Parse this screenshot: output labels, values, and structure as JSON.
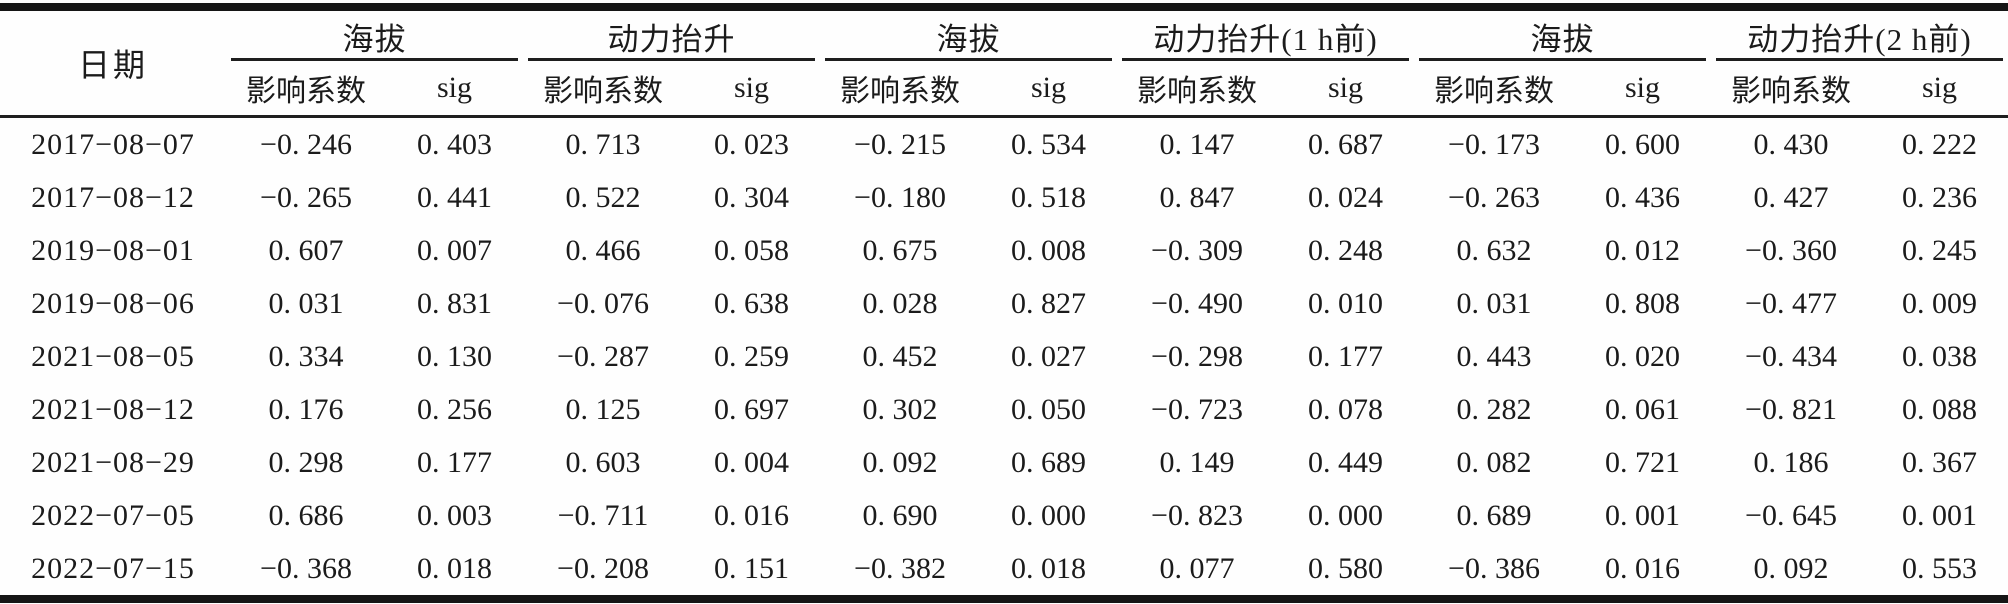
{
  "table": {
    "date_header": "日期",
    "groups": [
      {
        "label": "海拔",
        "sub": [
          "影响系数",
          "sig"
        ]
      },
      {
        "label": "动力抬升",
        "sub": [
          "影响系数",
          "sig"
        ]
      },
      {
        "label": "海拔",
        "sub": [
          "影响系数",
          "sig"
        ]
      },
      {
        "label": "动力抬升(1 h前)",
        "sub": [
          "影响系数",
          "sig"
        ]
      },
      {
        "label": "海拔",
        "sub": [
          "影响系数",
          "sig"
        ]
      },
      {
        "label": "动力抬升(2 h前)",
        "sub": [
          "影响系数",
          "sig"
        ]
      }
    ],
    "rows": [
      {
        "date": "2017−08−07",
        "values": [
          "−0. 246",
          "0. 403",
          "0. 713",
          "0. 023",
          "−0. 215",
          "0. 534",
          "0. 147",
          "0. 687",
          "−0. 173",
          "0. 600",
          "0. 430",
          "0. 222"
        ]
      },
      {
        "date": "2017−08−12",
        "values": [
          "−0. 265",
          "0. 441",
          "0. 522",
          "0. 304",
          "−0. 180",
          "0. 518",
          "0. 847",
          "0. 024",
          "−0. 263",
          "0. 436",
          "0. 427",
          "0. 236"
        ]
      },
      {
        "date": "2019−08−01",
        "values": [
          "0. 607",
          "0. 007",
          "0. 466",
          "0. 058",
          "0. 675",
          "0. 008",
          "−0. 309",
          "0. 248",
          "0. 632",
          "0. 012",
          "−0. 360",
          "0. 245"
        ]
      },
      {
        "date": "2019−08−06",
        "values": [
          "0. 031",
          "0. 831",
          "−0. 076",
          "0. 638",
          "0. 028",
          "0. 827",
          "−0. 490",
          "0. 010",
          "0. 031",
          "0. 808",
          "−0. 477",
          "0. 009"
        ]
      },
      {
        "date": "2021−08−05",
        "values": [
          "0. 334",
          "0. 130",
          "−0. 287",
          "0. 259",
          "0. 452",
          "0. 027",
          "−0. 298",
          "0. 177",
          "0. 443",
          "0. 020",
          "−0. 434",
          "0. 038"
        ]
      },
      {
        "date": "2021−08−12",
        "values": [
          "0. 176",
          "0. 256",
          "0. 125",
          "0. 697",
          "0. 302",
          "0. 050",
          "−0. 723",
          "0. 078",
          "0. 282",
          "0. 061",
          "−0. 821",
          "0. 088"
        ]
      },
      {
        "date": "2021−08−29",
        "values": [
          "0. 298",
          "0. 177",
          "0. 603",
          "0. 004",
          "0. 092",
          "0. 689",
          "0. 149",
          "0. 449",
          "0. 082",
          "0. 721",
          "0. 186",
          "0. 367"
        ]
      },
      {
        "date": "2022−07−05",
        "values": [
          "0. 686",
          "0. 003",
          "−0. 711",
          "0. 016",
          "0. 690",
          "0. 000",
          "−0. 823",
          "0. 000",
          "0. 689",
          "0. 001",
          "−0. 645",
          "0. 001"
        ]
      },
      {
        "date": "2022−07−15",
        "values": [
          "−0. 368",
          "0. 018",
          "−0. 208",
          "0. 151",
          "−0. 382",
          "0. 018",
          "0. 077",
          "0. 580",
          "−0. 386",
          "0. 016",
          "0. 092",
          "0. 553"
        ]
      }
    ]
  },
  "colors": {
    "background": "#fefefe",
    "text": "#1b1b1b",
    "rule": "#151515"
  }
}
